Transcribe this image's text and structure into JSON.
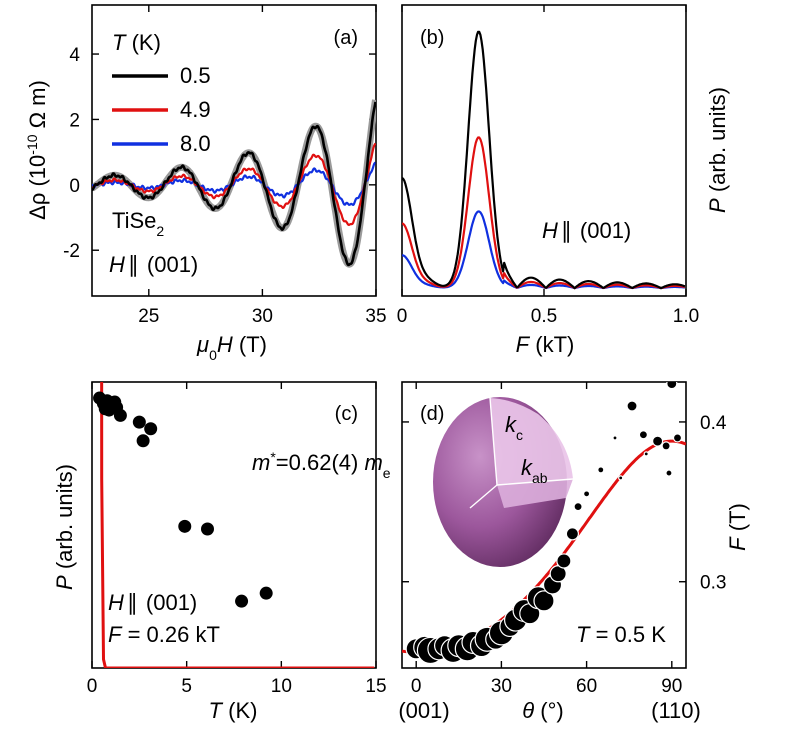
{
  "chart_data": [
    {
      "panel": "(a)",
      "type": "line",
      "xlabel_parts": [
        "μ",
        "0",
        "H",
        " (T)"
      ],
      "ylabel_parts": [
        "Δρ (10",
        "-10",
        " Ω m)"
      ],
      "xlim": [
        22.5,
        35
      ],
      "ylim": [
        -3.4,
        5.5
      ],
      "xticks": [
        25,
        30,
        35
      ],
      "yticks": [
        -2,
        0,
        2,
        4
      ],
      "legend_title_parts": [
        "T",
        " (K)"
      ],
      "annotations": {
        "material_parts": [
          "TiSe",
          "2"
        ],
        "field_parts": [
          "H",
          "∥",
          "(001)"
        ]
      },
      "series": [
        {
          "name": "0.5",
          "color": "#000000",
          "A": 0.4,
          "growth": 0.205,
          "period": 2.95,
          "phase": 2.64,
          "noise": 0.06
        },
        {
          "name": "4.9",
          "color": "#e01010",
          "A": 0.2,
          "growth": 0.205,
          "period": 2.95,
          "phase": 2.64,
          "noise": 0.05
        },
        {
          "name": "8.0",
          "color": "#1030e0",
          "A": 0.1,
          "growth": 0.205,
          "period": 2.95,
          "phase": 2.64,
          "noise": 0.06
        }
      ]
    },
    {
      "panel": "(b)",
      "type": "line",
      "xlabel_parts": [
        "F",
        " (kT)"
      ],
      "ylabel_parts": [
        "P",
        " (arb. units)"
      ],
      "xlim": [
        0,
        1.0
      ],
      "ylim": [
        0,
        1.1
      ],
      "xticks": [
        0,
        0.5,
        1.0
      ],
      "xtick_labels": [
        "0",
        "0.5",
        "1.0"
      ],
      "annotation_parts": [
        "H",
        "∥",
        "(001)"
      ],
      "peak_F": 0.27,
      "series": [
        {
          "name": "0.5",
          "color": "#000000",
          "peak": 0.97
        },
        {
          "name": "4.9",
          "color": "#e01010",
          "peak": 0.57
        },
        {
          "name": "8.0",
          "color": "#1030e0",
          "peak": 0.29
        }
      ]
    },
    {
      "panel": "(c)",
      "type": "scatter",
      "xlabel_parts": [
        "T",
        " (K)"
      ],
      "ylabel_parts": [
        "P",
        " (arb. units)"
      ],
      "xlim": [
        0,
        15
      ],
      "ylim": [
        0,
        1.07
      ],
      "xticks": [
        0,
        5,
        10,
        15
      ],
      "mass_parts": [
        "m",
        "*",
        "=0.62(4) ",
        "m",
        "e"
      ],
      "annotation_parts": [
        "H",
        "∥",
        "(001)"
      ],
      "f_parts": [
        "F",
        " = 0.26 kT"
      ],
      "points": [
        [
          0.4,
          1.01
        ],
        [
          0.6,
          0.99
        ],
        [
          0.8,
          1.0
        ],
        [
          1.0,
          0.98
        ],
        [
          1.2,
          0.995
        ],
        [
          0.7,
          0.97
        ],
        [
          1.3,
          0.975
        ],
        [
          0.9,
          0.965
        ],
        [
          2.5,
          0.92
        ],
        [
          3.1,
          0.895
        ],
        [
          1.5,
          0.945
        ],
        [
          2.7,
          0.85
        ],
        [
          4.9,
          0.53
        ],
        [
          6.1,
          0.52
        ],
        [
          7.9,
          0.25
        ],
        [
          9.2,
          0.28
        ]
      ],
      "fit": {
        "mstar": 0.62,
        "T0": 0.5
      }
    },
    {
      "panel": "(d)",
      "type": "scatter",
      "xlabel_parts": [
        "θ",
        " (°)"
      ],
      "ylabel_parts": [
        "F",
        " (T)"
      ],
      "xlim": [
        -5,
        95
      ],
      "ylim": [
        0.246,
        0.425
      ],
      "xticks": [
        0,
        30,
        60,
        90
      ],
      "yticks": [
        0.3,
        0.4
      ],
      "x_end_labels": [
        "(001)",
        "(110)"
      ],
      "inset_parts": [
        "k",
        "c",
        "k",
        "ab"
      ],
      "temp_parts": [
        "T",
        " = 0.5 K"
      ],
      "points": [
        [
          0,
          0.258,
          10
        ],
        [
          3,
          0.259,
          11
        ],
        [
          5,
          0.257,
          13
        ],
        [
          8,
          0.258,
          11
        ],
        [
          10,
          0.26,
          10
        ],
        [
          13,
          0.257,
          12
        ],
        [
          15,
          0.26,
          11
        ],
        [
          18,
          0.258,
          12
        ],
        [
          20,
          0.262,
          11
        ],
        [
          23,
          0.26,
          11
        ],
        [
          25,
          0.264,
          12
        ],
        [
          28,
          0.264,
          10
        ],
        [
          30,
          0.268,
          12
        ],
        [
          33,
          0.272,
          10
        ],
        [
          35,
          0.276,
          11
        ],
        [
          38,
          0.282,
          11
        ],
        [
          40,
          0.28,
          10
        ],
        [
          43,
          0.29,
          11
        ],
        [
          45,
          0.288,
          10
        ],
        [
          48,
          0.298,
          9
        ],
        [
          50,
          0.305,
          8
        ],
        [
          52,
          0.313,
          7
        ],
        [
          55,
          0.33,
          6
        ],
        [
          57,
          0.347,
          4
        ],
        [
          60,
          0.355,
          3
        ],
        [
          65,
          0.37,
          3
        ],
        [
          70,
          0.39,
          2
        ],
        [
          76,
          0.41,
          5
        ],
        [
          80,
          0.392,
          4
        ],
        [
          85,
          0.388,
          5
        ],
        [
          88,
          0.385,
          4
        ],
        [
          90,
          0.424,
          5
        ],
        [
          92,
          0.39,
          4
        ],
        [
          89,
          0.368,
          3
        ],
        [
          81,
          0.38,
          2
        ],
        [
          72,
          0.365,
          2
        ]
      ],
      "fit": {
        "Fmin": 0.256,
        "Fmax": 0.388
      }
    }
  ]
}
